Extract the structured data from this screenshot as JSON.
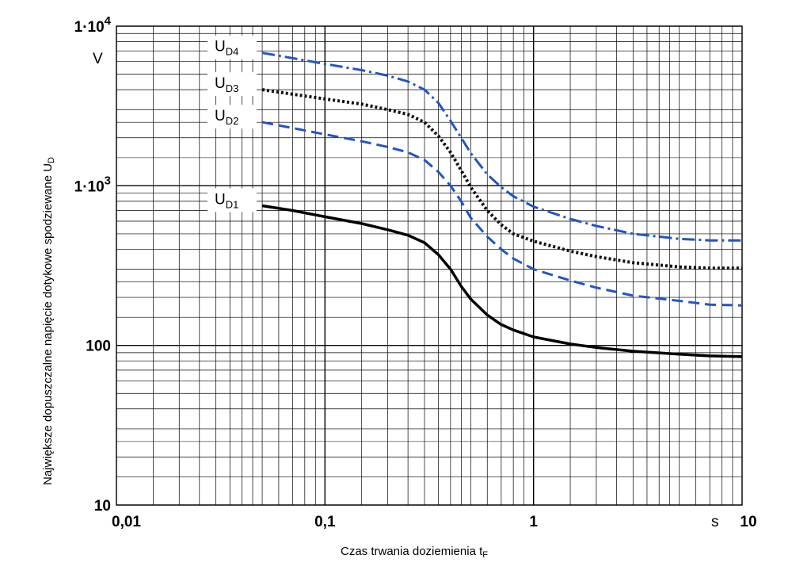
{
  "chart_data": {
    "type": "line",
    "xlabel": "Czas trwania doziemienia t",
    "xlabel_sub": "F",
    "ylabel": "Największe dopuszczalne napięcie dotykowe spodziewane U",
    "ylabel_sub": "D",
    "x_unit": "s",
    "y_unit": "V",
    "x_scale": "log",
    "y_scale": "log",
    "xlim": [
      0.01,
      10
    ],
    "ylim": [
      10,
      10000
    ],
    "grid": true,
    "x_ticks": [
      "0,01",
      "0,1",
      "1",
      "10"
    ],
    "y_ticks": [
      {
        "base": "10",
        "exp": ""
      },
      {
        "base": "100",
        "exp": ""
      },
      {
        "base": "1·10",
        "exp": "3"
      },
      {
        "base": "1·10",
        "exp": "4"
      }
    ],
    "series": [
      {
        "name": "U",
        "name_sub": "D1",
        "color": "#000000",
        "style": "solid",
        "x": [
          0.05,
          0.07,
          0.1,
          0.15,
          0.2,
          0.25,
          0.3,
          0.35,
          0.4,
          0.45,
          0.5,
          0.6,
          0.7,
          0.8,
          1,
          1.5,
          2,
          3,
          5,
          7,
          10
        ],
        "y": [
          750,
          700,
          640,
          580,
          530,
          490,
          440,
          370,
          300,
          235,
          195,
          155,
          135,
          125,
          113,
          102,
          97,
          92,
          88,
          86,
          85
        ]
      },
      {
        "name": "U",
        "name_sub": "D2",
        "color": "#2255c4",
        "style": "dashed",
        "x": [
          0.05,
          0.07,
          0.1,
          0.15,
          0.2,
          0.25,
          0.3,
          0.35,
          0.4,
          0.45,
          0.5,
          0.6,
          0.7,
          0.8,
          1,
          1.5,
          2,
          3,
          5,
          7,
          10
        ],
        "y": [
          2500,
          2300,
          2100,
          1900,
          1750,
          1620,
          1450,
          1220,
          1000,
          800,
          630,
          480,
          400,
          350,
          300,
          255,
          230,
          205,
          190,
          180,
          178
        ]
      },
      {
        "name": "U",
        "name_sub": "D3",
        "color": "#111111",
        "style": "dotted",
        "x": [
          0.05,
          0.07,
          0.1,
          0.15,
          0.2,
          0.25,
          0.3,
          0.35,
          0.4,
          0.45,
          0.5,
          0.6,
          0.7,
          0.8,
          1,
          1.5,
          2,
          3,
          5,
          7,
          10
        ],
        "y": [
          4000,
          3750,
          3500,
          3250,
          3000,
          2800,
          2500,
          2050,
          1620,
          1250,
          980,
          700,
          570,
          500,
          450,
          390,
          360,
          330,
          310,
          305,
          305
        ]
      },
      {
        "name": "U",
        "name_sub": "D4",
        "color": "#2255c4",
        "style": "dashdot",
        "x": [
          0.05,
          0.07,
          0.1,
          0.15,
          0.2,
          0.25,
          0.3,
          0.35,
          0.4,
          0.45,
          0.5,
          0.6,
          0.7,
          0.8,
          1,
          1.5,
          2,
          3,
          5,
          7,
          10
        ],
        "y": [
          6800,
          6300,
          5800,
          5300,
          4900,
          4500,
          4000,
          3300,
          2550,
          2000,
          1600,
          1180,
          980,
          860,
          740,
          620,
          560,
          500,
          465,
          455,
          455
        ]
      }
    ]
  }
}
